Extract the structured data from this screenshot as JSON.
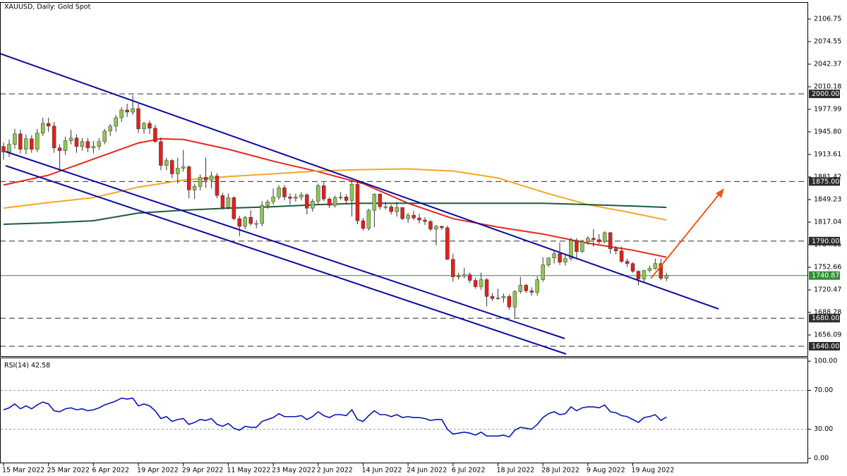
{
  "chart_data": [
    {
      "type": "candlestick",
      "title": "XAUUSD, Daily:  Gold Spot",
      "categories": [
        "15 Mar 2022",
        null,
        null,
        null,
        null,
        null,
        null,
        null,
        "25 Mar 2022",
        null,
        null,
        null,
        null,
        null,
        null,
        null,
        "6 Apr 2022",
        null,
        null,
        null,
        null,
        null,
        null,
        null,
        "19 Apr 2022",
        null,
        null,
        null,
        null,
        null,
        null,
        null,
        "29 Apr 2022",
        null,
        null,
        null,
        null,
        null,
        null,
        null,
        "11 May 2022",
        null,
        null,
        null,
        null,
        null,
        null,
        null,
        "23 May 2022",
        null,
        null,
        null,
        null,
        null,
        null,
        null,
        "2 Jun 2022",
        null,
        null,
        null,
        null,
        null,
        null,
        null,
        "14 Jun 2022",
        null,
        null,
        null,
        null,
        null,
        null,
        null,
        "24 Jun 2022",
        null,
        null,
        null,
        null,
        null,
        null,
        null,
        "6 Jul 2022",
        null,
        null,
        null,
        null,
        null,
        null,
        null,
        "18 Jul 2022",
        null,
        null,
        null,
        null,
        null,
        null,
        null,
        "28 Jul 2022",
        null,
        null,
        null,
        null,
        null,
        null,
        null,
        "9 Aug 2022",
        null,
        null,
        null,
        null,
        null,
        null,
        null,
        "19 Aug 2022",
        null,
        null,
        null,
        null,
        null,
        null
      ],
      "open": [
        1925,
        1917,
        1928,
        1943,
        1921,
        1936,
        1921,
        1944,
        1958,
        1954,
        1923,
        1919,
        1933,
        1937,
        1925,
        1932,
        1923,
        1925,
        1932,
        1947,
        1954,
        1966,
        1977,
        1974,
        1979,
        1950,
        1958,
        1951,
        1932,
        1898,
        1905,
        1886,
        1894,
        1896,
        1863,
        1868,
        1881,
        1877,
        1883,
        1855,
        1838,
        1852,
        1822,
        1811,
        1824,
        1815,
        1815,
        1841,
        1846,
        1853,
        1866,
        1853,
        1851,
        1853,
        1856,
        1837,
        1847,
        1869,
        1850,
        1841,
        1852,
        1853,
        1848,
        1871,
        1819,
        1808,
        1834,
        1857,
        1839,
        1839,
        1832,
        1838,
        1822,
        1827,
        1823,
        1820,
        1818,
        1807,
        1811,
        1809,
        1764,
        1739,
        1740,
        1742,
        1734,
        1725,
        1735,
        1711,
        1708,
        1709,
        1711,
        1696,
        1718,
        1727,
        1719,
        1717,
        1735,
        1756,
        1766,
        1772,
        1760,
        1765,
        1791,
        1775,
        1789,
        1794,
        1792,
        1789,
        1802,
        1779,
        1776,
        1761,
        1758,
        1747,
        1736,
        1748,
        1751,
        1758,
        1737
      ],
      "high": [
        1931,
        1935,
        1950,
        1949,
        1942,
        1941,
        1950,
        1966,
        1966,
        1960,
        1928,
        1939,
        1949,
        1942,
        1937,
        1937,
        1933,
        1937,
        1950,
        1957,
        1970,
        1981,
        1986,
        1998,
        1986,
        1960,
        1962,
        1956,
        1938,
        1909,
        1907,
        1909,
        1920,
        1898,
        1872,
        1885,
        1909,
        1889,
        1887,
        1859,
        1858,
        1854,
        1826,
        1826,
        1834,
        1820,
        1847,
        1849,
        1865,
        1870,
        1870,
        1858,
        1858,
        1860,
        1858,
        1850,
        1872,
        1874,
        1853,
        1855,
        1860,
        1857,
        1875,
        1877,
        1823,
        1836,
        1858,
        1858,
        1846,
        1842,
        1846,
        1838,
        1830,
        1833,
        1829,
        1824,
        1820,
        1813,
        1812,
        1812,
        1772,
        1745,
        1752,
        1745,
        1738,
        1745,
        1737,
        1716,
        1722,
        1715,
        1714,
        1720,
        1739,
        1729,
        1724,
        1740,
        1767,
        1767,
        1776,
        1788,
        1771,
        1795,
        1794,
        1792,
        1797,
        1807,
        1800,
        1804,
        1803,
        1783,
        1782,
        1765,
        1760,
        1748,
        1749,
        1755,
        1765,
        1765,
        1745
      ],
      "low": [
        1906,
        1910,
        1922,
        1915,
        1914,
        1916,
        1917,
        1940,
        1946,
        1916,
        1890,
        1913,
        1928,
        1916,
        1919,
        1917,
        1915,
        1920,
        1928,
        1940,
        1946,
        1960,
        1967,
        1970,
        1944,
        1943,
        1943,
        1930,
        1891,
        1891,
        1880,
        1872,
        1889,
        1851,
        1850,
        1862,
        1866,
        1865,
        1851,
        1835,
        1835,
        1820,
        1797,
        1807,
        1812,
        1808,
        1811,
        1836,
        1842,
        1849,
        1848,
        1842,
        1846,
        1848,
        1828,
        1832,
        1843,
        1847,
        1837,
        1838,
        1849,
        1843,
        1825,
        1814,
        1805,
        1805,
        1810,
        1835,
        1835,
        1828,
        1825,
        1820,
        1816,
        1820,
        1815,
        1813,
        1804,
        1784,
        1806,
        1763,
        1732,
        1735,
        1737,
        1730,
        1722,
        1720,
        1697,
        1705,
        1706,
        1702,
        1692,
        1681,
        1715,
        1716,
        1712,
        1712,
        1732,
        1753,
        1758,
        1756,
        1755,
        1762,
        1764,
        1773,
        1785,
        1782,
        1786,
        1787,
        1772,
        1771,
        1759,
        1753,
        1745,
        1727,
        1730,
        1745,
        1749,
        1734,
        1733
      ],
      "close": [
        1917,
        1928,
        1943,
        1921,
        1936,
        1921,
        1944,
        1958,
        1954,
        1923,
        1919,
        1933,
        1937,
        1925,
        1932,
        1923,
        1925,
        1932,
        1947,
        1954,
        1966,
        1977,
        1974,
        1979,
        1950,
        1958,
        1951,
        1932,
        1898,
        1905,
        1886,
        1894,
        1896,
        1863,
        1868,
        1881,
        1877,
        1883,
        1855,
        1838,
        1852,
        1822,
        1811,
        1824,
        1815,
        1815,
        1841,
        1846,
        1853,
        1866,
        1853,
        1851,
        1853,
        1856,
        1837,
        1847,
        1869,
        1850,
        1841,
        1852,
        1853,
        1848,
        1871,
        1819,
        1808,
        1834,
        1857,
        1839,
        1839,
        1832,
        1838,
        1822,
        1827,
        1823,
        1820,
        1818,
        1807,
        1811,
        1809,
        1764,
        1739,
        1740,
        1742,
        1734,
        1725,
        1735,
        1711,
        1708,
        1709,
        1711,
        1696,
        1718,
        1727,
        1719,
        1717,
        1735,
        1756,
        1766,
        1772,
        1760,
        1765,
        1791,
        1775,
        1789,
        1794,
        1792,
        1789,
        1802,
        1779,
        1776,
        1761,
        1758,
        1747,
        1736,
        1748,
        1751,
        1758,
        1737,
        1740.87
      ],
      "up_color": "#8cc751",
      "down_color": "#e3201b",
      "wick_color": "#333333",
      "series": [
        {
          "color": "#e8251f",
          "x": [
            0,
            8,
            16,
            24,
            28,
            32,
            40,
            48,
            56,
            64,
            72,
            80,
            88,
            96,
            104,
            112,
            118
          ],
          "values": [
            1870,
            1884,
            1907,
            1930,
            1936,
            1935,
            1921,
            1904,
            1889,
            1872,
            1844,
            1822,
            1810,
            1800,
            1787,
            1777,
            1767
          ]
        },
        {
          "color": "#f5a623",
          "x": [
            0,
            8,
            16,
            24,
            32,
            40,
            48,
            56,
            64,
            72,
            80,
            88,
            96,
            104,
            112,
            118
          ],
          "values": [
            1837,
            1845,
            1852,
            1867,
            1877,
            1882,
            1886,
            1890,
            1892,
            1893,
            1890,
            1880,
            1860,
            1842,
            1830,
            1820
          ]
        },
        {
          "color": "#1f5a3c",
          "x": [
            0,
            8,
            16,
            24,
            32,
            40,
            48,
            56,
            64,
            72,
            80,
            88,
            96,
            104,
            112,
            118
          ],
          "values": [
            1814,
            1816,
            1819,
            1830,
            1834,
            1837,
            1839,
            1842,
            1844,
            1844,
            1844,
            1844,
            1844,
            1842,
            1840,
            1838
          ]
        }
      ],
      "levels": [
        {
          "value": 2000,
          "label": "2000.00"
        },
        {
          "value": 1875,
          "label": "1875.00"
        },
        {
          "value": 1790,
          "label": "1790.00"
        },
        {
          "value": 1680,
          "label": "1680.00"
        },
        {
          "value": 1640,
          "label": "1640.00"
        }
      ],
      "level_color": "#2b2b2b",
      "current_price": {
        "value": 1740.87,
        "label": "1740.87"
      },
      "current_color": "#2f8f2f",
      "ylim": [
        1625.9,
        2130.9
      ],
      "yticks": [
        2106.75,
        2074.55,
        2042.37,
        2010.18,
        1977.99,
        {
          "value": 1945.8,
          "label": "1945.80"
        },
        1913.61,
        1881.42,
        1849.23,
        1817.04,
        1784.85,
        1752.66,
        1720.47,
        1688.28,
        1656.09
      ]
    },
    {
      "type": "line",
      "title": "RSI(14)",
      "last_value": 42.58,
      "color": "#0a14b4",
      "values": [
        50,
        52,
        56,
        51,
        54,
        51,
        55,
        58,
        56,
        49,
        48,
        51,
        52,
        50,
        51,
        49,
        50,
        52,
        55,
        57,
        59,
        62,
        61,
        62,
        54,
        56,
        54,
        49,
        41,
        43,
        38,
        40,
        41,
        35,
        37,
        40,
        39,
        41,
        35,
        33,
        36,
        31,
        29,
        33,
        32,
        32,
        38,
        40,
        42,
        46,
        43,
        43,
        43,
        44,
        40,
        43,
        48,
        44,
        42,
        45,
        45,
        44,
        50,
        40,
        38,
        44,
        49,
        45,
        45,
        43,
        45,
        42,
        43,
        42,
        42,
        41,
        39,
        40,
        40,
        30,
        25,
        26,
        27,
        26,
        24,
        27,
        23,
        23,
        23,
        24,
        22,
        29,
        32,
        31,
        30,
        35,
        42,
        46,
        48,
        45,
        46,
        53,
        49,
        52,
        53,
        53,
        52,
        55,
        48,
        47,
        44,
        43,
        40,
        37,
        42,
        43,
        45,
        39,
        42.58
      ],
      "ylim": [
        -4.3,
        103
      ],
      "yticks": [
        {
          "value": 100,
          "label": "100.00"
        },
        {
          "value": 70,
          "label": "70.00"
        },
        {
          "value": 30,
          "label": "30.00"
        },
        {
          "value": 0,
          "label": "0.00"
        }
      ],
      "grid": "inner"
    }
  ]
}
